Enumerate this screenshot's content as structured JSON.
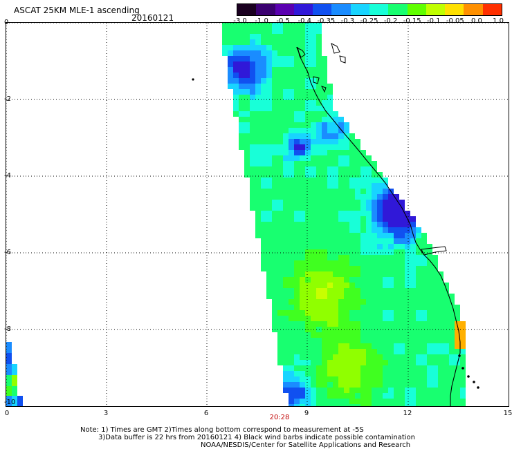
{
  "header": {
    "title": "ASCAT 25KM MLE-1 ascending",
    "date": "20160121"
  },
  "colorbar": {
    "labels": [
      "-3.0",
      "-1.0",
      "-0.5",
      "-0.4",
      "-0.35",
      "-0.3",
      "-0.25",
      "-0.2",
      "-0.15",
      "-0.1",
      "-0.05",
      "0.0",
      "1.0"
    ],
    "colors": [
      "#1a0020",
      "#3a0070",
      "#5a00b0",
      "#3018d8",
      "#1050f0",
      "#1a8cff",
      "#18d4ff",
      "#18ffd8",
      "#18ff70",
      "#60ff00",
      "#c0ff00",
      "#ffe000",
      "#ff9000",
      "#ff3000"
    ]
  },
  "axes": {
    "y_labels": [
      "0",
      "-2",
      "-4",
      "-6",
      "-8",
      "-10"
    ],
    "x_labels": [
      "0",
      "3",
      "6",
      "9",
      "12",
      "15"
    ],
    "time_label": "20:28",
    "grid": "dotted"
  },
  "notes": {
    "line1": "Note: 1) Times are GMT 2)Times along bottom correspond to measurement at -5S",
    "line2": "3)Data buffer is 22 hrs from 20160121 4) Black wind barbs indicate possible contamination",
    "line3": "NOAA/NESDIS/Center for Satellite Applications and Research"
  }
}
